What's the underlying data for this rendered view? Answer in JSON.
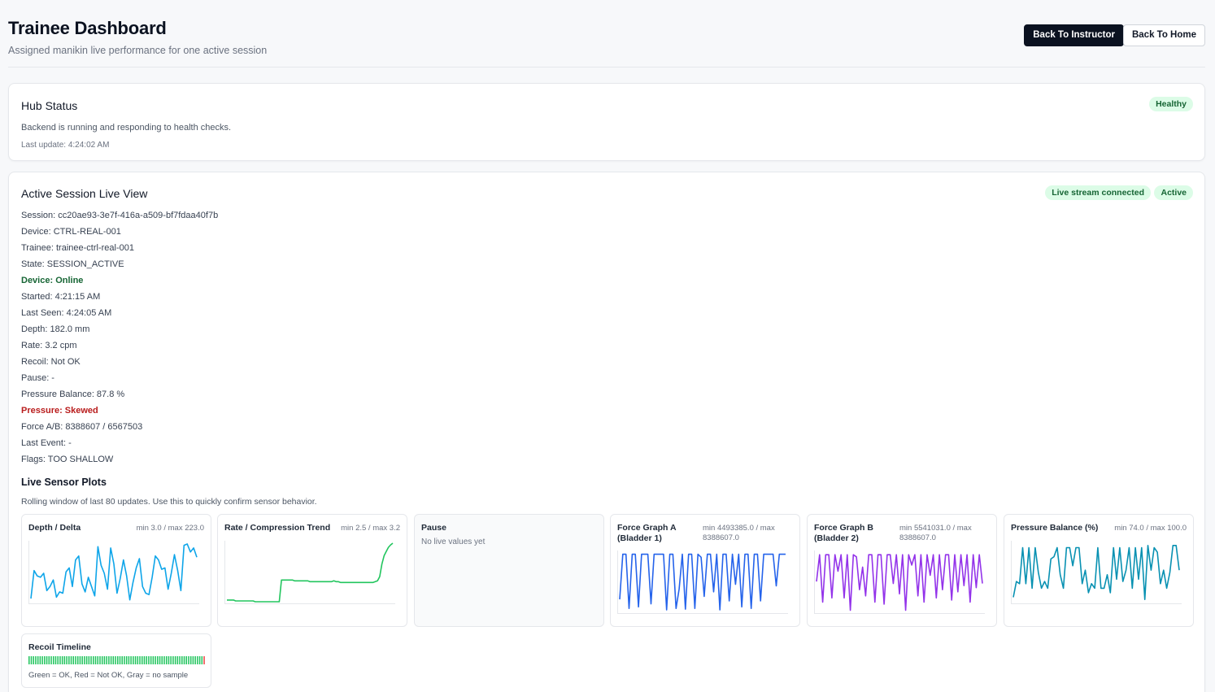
{
  "header": {
    "title": "Trainee Dashboard",
    "subtitle": "Assigned manikin live performance for one active session",
    "back_instructor_label": "Back To Instructor",
    "back_home_label": "Back To Home"
  },
  "hub": {
    "title": "Hub Status",
    "badge": "Healthy",
    "message": "Backend is running and responding to health checks.",
    "last_update": "Last update: 4:24:02 AM"
  },
  "session": {
    "title": "Active Session Live View",
    "badges": [
      "Live stream connected",
      "Active"
    ],
    "lines": [
      {
        "text": "Session: cc20ae93-3e7f-416a-a509-bf7fdaa40f7b",
        "status": "normal"
      },
      {
        "text": "Device: CTRL-REAL-001",
        "status": "normal"
      },
      {
        "text": "Trainee: trainee-ctrl-real-001",
        "status": "normal"
      },
      {
        "text": "State: SESSION_ACTIVE",
        "status": "normal"
      },
      {
        "text": "Device: Online",
        "status": "good"
      },
      {
        "text": "Started: 4:21:15 AM",
        "status": "normal"
      },
      {
        "text": "Last Seen: 4:24:05 AM",
        "status": "normal"
      },
      {
        "text": "Depth: 182.0 mm",
        "status": "normal"
      },
      {
        "text": "Rate: 3.2 cpm",
        "status": "normal"
      },
      {
        "text": "Recoil: Not OK",
        "status": "normal"
      },
      {
        "text": "Pause: -",
        "status": "normal"
      },
      {
        "text": "Pressure Balance: 87.8 %",
        "status": "normal"
      },
      {
        "text": "Pressure: Skewed",
        "status": "bad"
      },
      {
        "text": "Force A/B: 8388607 / 6567503",
        "status": "normal"
      },
      {
        "text": "Last Event: -",
        "status": "normal"
      },
      {
        "text": "Flags: TOO SHALLOW",
        "status": "normal"
      }
    ]
  },
  "plots": {
    "title": "Live Sensor Plots",
    "description": "Rolling window of last 80 updates. Use this to quickly confirm sensor behavior.",
    "items": [
      {
        "title": "Depth / Delta",
        "range": "min 3.0 / max 223.0",
        "color": "#0ea5e9",
        "min": 3.0,
        "max": 223.0,
        "values": [
          15,
          120,
          100,
          95,
          110,
          45,
          60,
          85,
          20,
          40,
          35,
          115,
          130,
          60,
          160,
          175,
          70,
          40,
          95,
          60,
          25,
          210,
          140,
          110,
          50,
          205,
          145,
          35,
          90,
          160,
          100,
          10,
          75,
          130,
          165,
          60,
          35,
          30,
          95,
          175,
          160,
          125,
          130,
          50,
          110,
          180,
          120,
          45,
          215,
          220,
          190,
          205,
          170
        ]
      },
      {
        "title": "Rate / Compression Trend",
        "range": "min 2.5 / max 3.2",
        "color": "#22c55e",
        "min": 2.5,
        "max": 3.2,
        "values": [
          2.52,
          2.52,
          2.52,
          2.52,
          2.51,
          2.51,
          2.51,
          2.51,
          2.51,
          2.51,
          2.51,
          2.51,
          2.51,
          2.5,
          2.5,
          2.5,
          2.5,
          2.5,
          2.5,
          2.5,
          2.5,
          2.5,
          2.5,
          2.5,
          2.5,
          2.76,
          2.76,
          2.76,
          2.76,
          2.76,
          2.76,
          2.75,
          2.75,
          2.75,
          2.75,
          2.75,
          2.75,
          2.75,
          2.74,
          2.74,
          2.74,
          2.74,
          2.74,
          2.74,
          2.74,
          2.74,
          2.74,
          2.74,
          2.74,
          2.75,
          2.74,
          2.74,
          2.73,
          2.73,
          2.73,
          2.73,
          2.73,
          2.73,
          2.73,
          2.73,
          2.73,
          2.73,
          2.73,
          2.73,
          2.73,
          2.73,
          2.73,
          2.73,
          2.74,
          2.75,
          2.8,
          2.95,
          3.05,
          3.1,
          3.15,
          3.18,
          3.2
        ]
      },
      {
        "title": "Pause",
        "empty_message": "No live values yet"
      },
      {
        "title": "Force Graph A\n(Bladder 1)",
        "range": "min 4493385.0 / max\n8388607.0",
        "color": "#2563eb",
        "min": 4493385.0,
        "max": 8388607.0,
        "values": [
          5300000,
          8300000,
          8300000,
          4700000,
          8300000,
          8300000,
          4800000,
          8300000,
          8300000,
          8300000,
          5000000,
          8300000,
          8300000,
          8300000,
          8300000,
          4600000,
          8300000,
          8300000,
          4700000,
          6000000,
          8300000,
          4650000,
          8300000,
          8300000,
          4700000,
          8300000,
          8100000,
          5500000,
          8300000,
          8300000,
          5800000,
          8300000,
          4600000,
          8300000,
          8300000,
          5200000,
          8300000,
          6300000,
          8300000,
          4800000,
          8300000,
          8300000,
          4700000,
          8300000,
          8300000,
          5200000,
          8300000,
          8300000,
          8300000,
          8300000,
          6200000,
          8300000,
          8300000,
          8300000
        ]
      },
      {
        "title": "Force Graph B\n(Bladder 2)",
        "range": "min 5541031.0 / max\n8388607.0",
        "color": "#9333ea",
        "min": 5541031.0,
        "max": 8388607.0,
        "values": [
          7000000,
          8300000,
          6000000,
          8300000,
          8300000,
          6200000,
          8300000,
          7500000,
          8300000,
          6200000,
          8300000,
          5600000,
          8300000,
          8200000,
          6600000,
          7700000,
          6300000,
          8300000,
          8300000,
          6000000,
          8300000,
          8300000,
          5900000,
          8300000,
          8300000,
          6900000,
          8300000,
          6400000,
          8300000,
          5600000,
          8300000,
          7800000,
          8300000,
          6300000,
          8300000,
          6000000,
          8300000,
          7300000,
          8300000,
          6200000,
          8300000,
          6600000,
          8300000,
          8300000,
          6100000,
          8300000,
          6500000,
          8300000,
          6800000,
          8300000,
          6000000,
          8300000,
          6700000,
          8300000,
          6900000
        ]
      },
      {
        "title": "Pressure Balance (%)",
        "range": "min 74.0 / max 100.0",
        "color": "#0891b2",
        "min": 74.0,
        "max": 100.0,
        "values": [
          76,
          83,
          82,
          98,
          82,
          98,
          80,
          98,
          87,
          80,
          83,
          80,
          93,
          94,
          98,
          86,
          80,
          98,
          98,
          90,
          98,
          98,
          82,
          88,
          78,
          82,
          80,
          98,
          80,
          80,
          86,
          78,
          98,
          84,
          98,
          83,
          88,
          98,
          80,
          98,
          84,
          98,
          75,
          99,
          88,
          98,
          96,
          82,
          88,
          80,
          87,
          99,
          99,
          88
        ]
      }
    ]
  },
  "recoil": {
    "title": "Recoil Timeline",
    "legend": "Green = OK, Red = Not OK, Gray = no sample",
    "samples": [
      "ok",
      "ok",
      "ok",
      "ok",
      "ok",
      "ok",
      "ok",
      "ok",
      "ok",
      "ok",
      "ok",
      "ok",
      "ok",
      "ok",
      "ok",
      "ok",
      "ok",
      "ok",
      "ok",
      "ok",
      "ok",
      "ok",
      "ok",
      "ok",
      "ok",
      "ok",
      "ok",
      "ok",
      "ok",
      "ok",
      "ok",
      "ok",
      "ok",
      "ok",
      "ok",
      "ok",
      "ok",
      "ok",
      "ok",
      "ok",
      "ok",
      "ok",
      "ok",
      "ok",
      "ok",
      "ok",
      "ok",
      "ok",
      "ok",
      "ok",
      "ok",
      "ok",
      "ok",
      "ok",
      "ok",
      "ok",
      "ok",
      "ok",
      "ok",
      "ok",
      "ok",
      "ok",
      "ok",
      "ok",
      "ok",
      "ok",
      "ok",
      "ok",
      "ok",
      "ok",
      "ok",
      "ok",
      "ok",
      "ok",
      "ok",
      "ok",
      "ok",
      "ok",
      "ok",
      "bad"
    ],
    "colors": {
      "ok": "#22c55e",
      "bad": "#ef4444",
      "none": "#d1d5db"
    }
  }
}
